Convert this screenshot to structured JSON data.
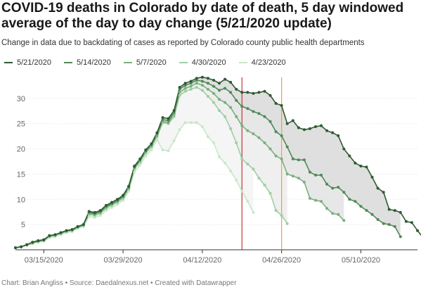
{
  "title": "COVID-19 deaths in Colorado by date of death, 5 day windowed average of the day to day change (5/21/2020 update)",
  "subtitle": "Change in data due to backdating of cases as reported by Colorado county public health departments",
  "footer": "Chart: Brian Angliss • Source: Daedalnexus.net • Created with Datawrapper",
  "chart_data": {
    "type": "line",
    "x_axis": {
      "type": "date",
      "start": "2020-03-10",
      "end": "2020-05-20"
    },
    "y_axis": {
      "range": [
        0,
        35
      ],
      "ticks": [
        0,
        5,
        10,
        15,
        20,
        25,
        30
      ]
    },
    "x_ticks": [
      "2020-03-15",
      "2020-03-29",
      "2020-04-12",
      "2020-04-26",
      "2020-05-10"
    ],
    "x_tick_labels": [
      "03/15/2020",
      "03/29/2020",
      "04/12/2020",
      "04/26/2020",
      "05/10/2020"
    ],
    "grid": true,
    "legend_position": "top-left",
    "reference_lines": [
      {
        "date": "2020-04-19",
        "color": "#c0392b"
      },
      {
        "date": "2020-04-26",
        "color": "#f0a030"
      }
    ],
    "series": [
      {
        "name": "5/21/2020",
        "color": "#2f5a33",
        "start": "2020-03-10",
        "values": [
          0.4,
          0.6,
          1.0,
          1.5,
          1.8,
          2.0,
          2.8,
          3.0,
          3.4,
          3.8,
          4.0,
          4.6,
          5.0,
          7.6,
          7.4,
          7.8,
          8.8,
          9.4,
          10.0,
          10.8,
          12.6,
          16.6,
          18.0,
          19.8,
          21.0,
          23.2,
          26.2,
          26.0,
          27.6,
          32.2,
          33.0,
          33.4,
          34.0,
          34.2,
          34.0,
          33.6,
          33.0,
          33.8,
          33.2,
          31.8,
          31.2,
          31.2,
          31.0,
          31.2,
          31.4,
          30.6,
          29.0,
          28.6,
          25.0,
          25.6,
          24.2,
          23.8,
          24.0,
          24.4,
          24.6,
          23.6,
          23.2,
          22.6,
          20.0,
          18.6,
          17.2,
          16.6,
          16.4,
          14.4,
          12.2,
          11.4,
          8.0,
          7.8,
          7.4,
          5.6,
          5.4,
          3.8,
          2.4,
          1.6
        ]
      },
      {
        "name": "5/14/2020",
        "color": "#4f8a57",
        "start": "2020-03-10",
        "values": [
          0.4,
          0.6,
          1.0,
          1.5,
          1.8,
          2.0,
          2.8,
          3.0,
          3.4,
          3.8,
          4.0,
          4.6,
          5.0,
          7.4,
          7.2,
          7.6,
          8.6,
          9.2,
          9.8,
          10.6,
          12.4,
          16.4,
          17.8,
          19.6,
          20.8,
          23.0,
          25.8,
          25.6,
          27.2,
          31.8,
          32.6,
          33.0,
          33.6,
          33.4,
          33.0,
          32.4,
          31.6,
          32.0,
          31.2,
          29.6,
          28.4,
          28.0,
          27.4,
          27.0,
          26.4,
          25.4,
          23.4,
          22.6,
          20.4,
          18.0,
          17.8,
          17.8,
          15.4,
          14.8,
          14.8,
          13.0,
          12.2,
          12.4,
          11.4,
          10.0,
          9.6,
          8.6,
          7.8,
          7.0,
          6.0,
          5.2,
          5.0,
          4.6,
          2.6
        ]
      },
      {
        "name": "5/7/2020",
        "color": "#79b07f",
        "start": "2020-03-10",
        "values": [
          0.4,
          0.6,
          1.0,
          1.4,
          1.7,
          1.9,
          2.7,
          2.9,
          3.3,
          3.7,
          3.9,
          4.5,
          4.9,
          7.2,
          7.0,
          7.4,
          8.4,
          9.0,
          9.6,
          10.4,
          12.2,
          16.2,
          17.6,
          19.4,
          20.6,
          22.6,
          25.4,
          25.2,
          26.8,
          31.2,
          32.0,
          32.4,
          33.0,
          32.6,
          31.8,
          31.0,
          29.8,
          29.2,
          28.2,
          26.4,
          24.6,
          23.6,
          23.0,
          22.2,
          21.2,
          20.0,
          18.6,
          18.0,
          15.0,
          14.6,
          14.2,
          13.4,
          10.2,
          9.8,
          9.6,
          8.2,
          7.2,
          7.0,
          5.8
        ]
      },
      {
        "name": "4/30/2020",
        "color": "#9fcea4",
        "start": "2020-03-10",
        "values": [
          0.4,
          0.6,
          0.9,
          1.3,
          1.6,
          1.8,
          2.6,
          2.8,
          3.2,
          3.6,
          3.8,
          4.4,
          4.8,
          7.0,
          6.8,
          7.2,
          8.2,
          8.8,
          9.4,
          10.2,
          12.0,
          16.0,
          17.4,
          19.2,
          20.4,
          22.4,
          25.2,
          25.0,
          26.4,
          30.6,
          31.4,
          31.8,
          32.2,
          31.6,
          30.4,
          29.2,
          27.6,
          26.4,
          24.0,
          21.2,
          18.0,
          17.0,
          16.0,
          14.2,
          12.8,
          11.2,
          7.8,
          6.8,
          5.2
        ]
      },
      {
        "name": "4/23/2020",
        "color": "#c7e8c8",
        "start": "2020-03-10",
        "values": [
          0.4,
          0.6,
          0.9,
          1.2,
          1.5,
          1.7,
          2.4,
          2.6,
          3.0,
          3.4,
          3.6,
          4.2,
          4.6,
          6.6,
          6.4,
          6.8,
          7.8,
          8.4,
          9.0,
          9.8,
          11.6,
          15.4,
          16.8,
          18.6,
          19.8,
          21.8,
          19.8,
          19.6,
          21.6,
          23.8,
          25.2,
          25.2,
          25.2,
          24.4,
          22.4,
          21.2,
          18.4,
          17.2,
          15.6,
          13.8,
          11.6,
          9.6,
          7.4
        ]
      }
    ]
  }
}
